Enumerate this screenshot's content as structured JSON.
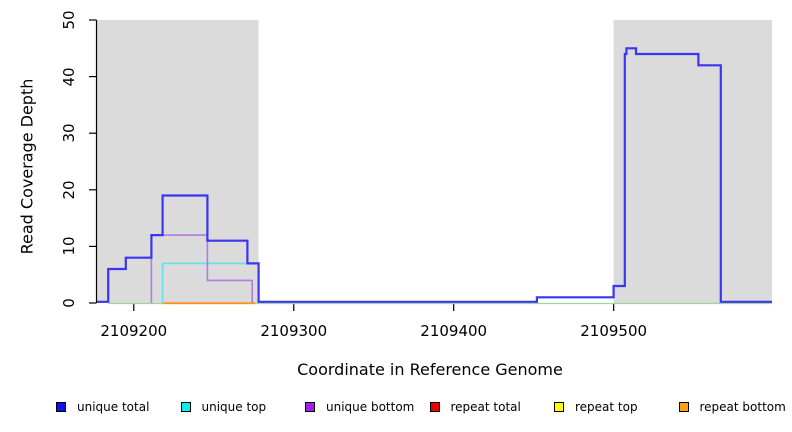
{
  "chart_data": {
    "type": "line",
    "title": "",
    "xlabel": "Coordinate in Reference Genome",
    "ylabel": "Read Coverage Depth",
    "xlim": [
      2109177,
      2109599
    ],
    "ylim": [
      0,
      50
    ],
    "x_ticks": [
      2109200,
      2109300,
      2109400,
      2109500
    ],
    "y_ticks": [
      0,
      10,
      20,
      30,
      40,
      50
    ],
    "grid": false,
    "legend_position": "bottom",
    "axis_color": "#000000",
    "background_color": "#ffffff",
    "shade_color": "#dbdbdb",
    "shaded_regions": [
      {
        "x0": 2109177,
        "x1": 2109278
      },
      {
        "x0": 2109500,
        "x1": 2109599
      }
    ],
    "series": [
      {
        "name": "zero-baseline",
        "color": "#9cd89c",
        "width": 1.2,
        "zero_dy": 0.5,
        "points": [
          [
            2109184,
            0
          ],
          [
            2109599,
            0
          ]
        ]
      },
      {
        "name": "repeat bottom",
        "color": "#ff951f",
        "width": 1.8,
        "zero_dy": 0.2,
        "points": [
          [
            2109218,
            0
          ],
          [
            2109276,
            0
          ]
        ]
      },
      {
        "name": "unique top",
        "color": "#6adee8",
        "width": 1.6,
        "zero_dy": 0,
        "points": [
          [
            2109218,
            0
          ],
          [
            2109218,
            7
          ],
          [
            2109278,
            7
          ],
          [
            2109278,
            0
          ]
        ]
      },
      {
        "name": "unique bottom",
        "color": "#b27de3",
        "width": 1.6,
        "zero_dy": 0,
        "points": [
          [
            2109211,
            0
          ],
          [
            2109211,
            12
          ],
          [
            2109246,
            12
          ],
          [
            2109246,
            4
          ],
          [
            2109274,
            4
          ],
          [
            2109274,
            0
          ]
        ]
      },
      {
        "name": "unique total",
        "color": "#3a35f1",
        "width": 2.2,
        "zero_dy": -1.2,
        "points": [
          [
            2109177,
            0
          ],
          [
            2109184,
            0
          ],
          [
            2109184,
            6
          ],
          [
            2109195,
            6
          ],
          [
            2109195,
            8
          ],
          [
            2109211,
            8
          ],
          [
            2109211,
            12
          ],
          [
            2109218,
            12
          ],
          [
            2109218,
            19
          ],
          [
            2109246,
            19
          ],
          [
            2109246,
            11
          ],
          [
            2109271,
            11
          ],
          [
            2109271,
            7
          ],
          [
            2109278,
            7
          ],
          [
            2109278,
            0
          ],
          [
            2109452,
            0
          ],
          [
            2109452,
            1
          ],
          [
            2109500,
            1
          ],
          [
            2109500,
            3
          ],
          [
            2109507,
            3
          ],
          [
            2109507,
            44
          ],
          [
            2109508,
            44
          ],
          [
            2109508,
            45
          ],
          [
            2109514,
            45
          ],
          [
            2109514,
            44
          ],
          [
            2109553,
            44
          ],
          [
            2109553,
            42
          ],
          [
            2109567,
            42
          ],
          [
            2109567,
            0
          ],
          [
            2109599,
            0
          ]
        ]
      }
    ],
    "legend": [
      {
        "label": "unique total",
        "color": "#1010f0"
      },
      {
        "label": "unique top",
        "color": "#00efef"
      },
      {
        "label": "unique bottom",
        "color": "#a020f0"
      },
      {
        "label": "repeat total",
        "color": "#ee0000"
      },
      {
        "label": "repeat top",
        "color": "#ffff00"
      },
      {
        "label": "repeat bottom",
        "color": "#ffa014"
      }
    ]
  }
}
